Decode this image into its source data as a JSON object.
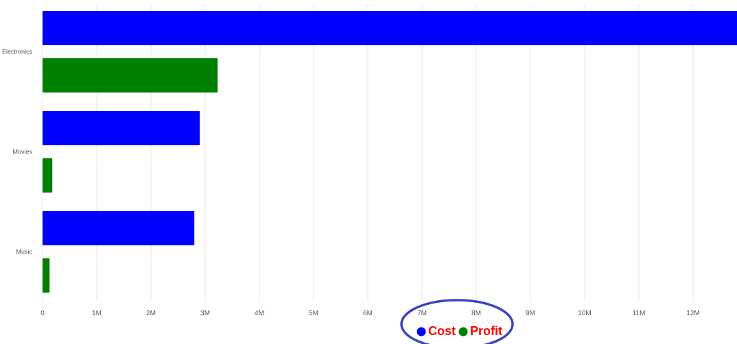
{
  "chart_data": {
    "type": "bar",
    "orientation": "horizontal",
    "categories": [
      "Electronics",
      "Movies",
      "Music"
    ],
    "series": [
      {
        "name": "Cost",
        "values": [
          13000000,
          2900000,
          2800000
        ],
        "color": "#0000ff"
      },
      {
        "name": "Profit",
        "values": [
          3230000,
          180000,
          130000
        ],
        "color": "#008000"
      }
    ],
    "x_ticks": [
      "0",
      "1M",
      "2M",
      "3M",
      "4M",
      "5M",
      "6M",
      "7M",
      "8M",
      "9M",
      "10M",
      "11M",
      "12M"
    ],
    "xlim": [
      0,
      12800000
    ],
    "grid": true,
    "legend_position": "bottom-center",
    "legend_highlight_color": "#3a45c0",
    "legend_text_color": "#ff0000"
  }
}
